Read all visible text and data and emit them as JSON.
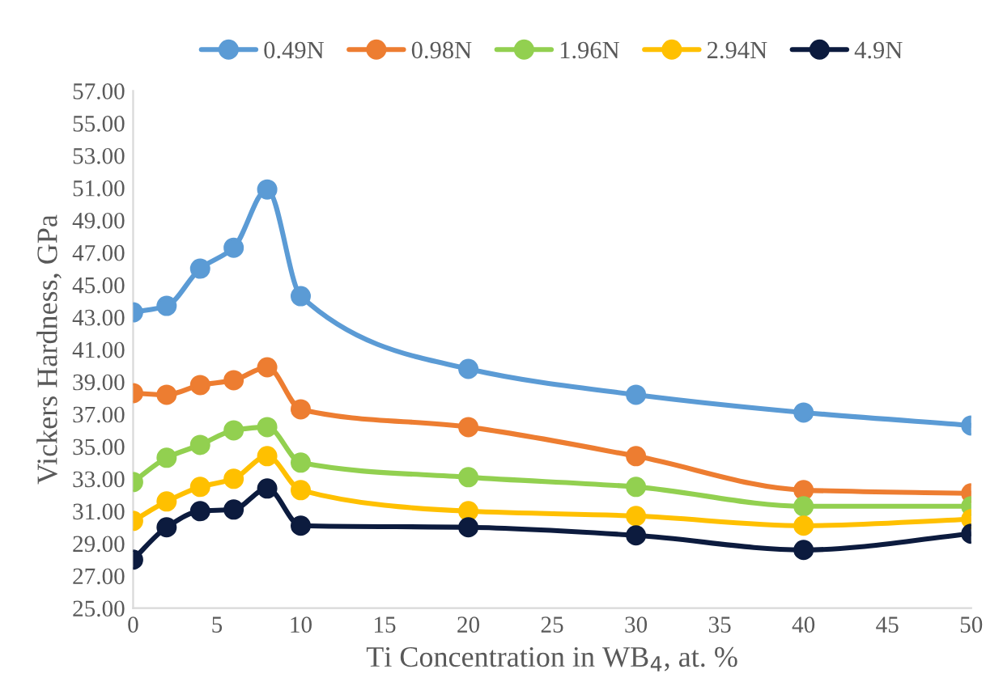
{
  "chart_data": {
    "type": "line",
    "xlabel": "Ti Concentration in WB$_{4}$, at. %",
    "ylabel": "Vickers Hardness, GPa",
    "x": [
      0,
      2,
      4,
      6,
      8,
      10,
      20,
      30,
      40,
      50
    ],
    "series": [
      {
        "name": "0.49N",
        "color": "#5b9bd5",
        "values": [
          43.3,
          43.7,
          46.0,
          47.3,
          50.9,
          44.3,
          39.8,
          38.2,
          37.1,
          36.3
        ]
      },
      {
        "name": "0.98N",
        "color": "#ed7d31",
        "values": [
          38.3,
          38.2,
          38.8,
          39.1,
          39.9,
          37.3,
          36.2,
          34.4,
          32.3,
          32.1
        ]
      },
      {
        "name": "1.96N",
        "color": "#92d050",
        "values": [
          32.8,
          34.3,
          35.1,
          36.0,
          36.2,
          34.0,
          33.1,
          32.5,
          31.3,
          31.3
        ]
      },
      {
        "name": "2.94N",
        "color": "#ffc000",
        "values": [
          30.4,
          31.6,
          32.5,
          33.0,
          34.4,
          32.3,
          31.0,
          30.7,
          30.1,
          30.5
        ]
      },
      {
        "name": "4.9N",
        "color": "#0c1b3e",
        "values": [
          28.0,
          30.0,
          31.0,
          31.1,
          32.4,
          30.1,
          30.0,
          29.5,
          28.6,
          29.6
        ]
      }
    ],
    "xlim": [
      0,
      50
    ],
    "xticks": [
      0,
      5,
      10,
      15,
      20,
      25,
      30,
      35,
      40,
      45,
      50
    ],
    "ylim": [
      25,
      57
    ],
    "yticks": [
      {
        "value": 25,
        "label": "25.00"
      },
      {
        "value": 27,
        "label": "27.00"
      },
      {
        "value": 29,
        "label": "29.00"
      },
      {
        "value": 31,
        "label": "31.00"
      },
      {
        "value": 33,
        "label": "33.00"
      },
      {
        "value": 35,
        "label": "35.00"
      },
      {
        "value": 37,
        "label": "37.00"
      },
      {
        "value": 39,
        "label": "39.00"
      },
      {
        "value": 41,
        "label": "41.00"
      },
      {
        "value": 43,
        "label": "43.00"
      },
      {
        "value": 45,
        "label": "45.00"
      },
      {
        "value": 47,
        "label": "47.00"
      },
      {
        "value": 49,
        "label": "49.00"
      },
      {
        "value": 51,
        "label": "51.00"
      },
      {
        "value": 53,
        "label": "53.00"
      },
      {
        "value": 55,
        "label": "55.00"
      },
      {
        "value": 57,
        "label": "57.00"
      }
    ],
    "grid": false,
    "legend": "top",
    "marker": "circle",
    "line_style": "solid"
  }
}
